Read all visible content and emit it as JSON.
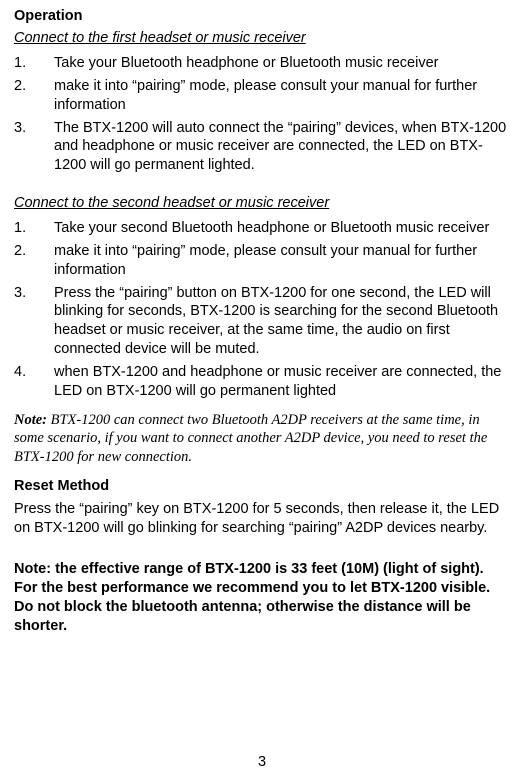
{
  "operation": {
    "heading": "Operation",
    "section1": {
      "heading": "Connect to the first headset or music receiver",
      "steps": [
        "Take your Bluetooth headphone or Bluetooth music receiver",
        "make it into “pairing” mode, please consult your manual for further information",
        "The BTX-1200 will auto connect the “pairing” devices, when BTX-1200 and headphone or music receiver are connected, the LED on BTX-1200 will go permanent lighted."
      ]
    },
    "section2": {
      "heading": "Connect to the second headset or music receiver",
      "steps": [
        "Take your second Bluetooth headphone or Bluetooth music receiver",
        "make it into “pairing” mode, please consult your manual for further information",
        "Press the “pairing” button on BTX-1200 for one second, the LED will blinking for seconds, BTX-1200 is searching for the second Bluetooth headset or music receiver, at the same time, the audio on first connected device will be muted.",
        "when BTX-1200 and headphone or music receiver are connected, the LED on BTX-1200 will go permanent lighted"
      ]
    },
    "note": {
      "label": "Note:",
      "body": " BTX-1200 can connect two Bluetooth A2DP receivers at the same time, in some scenario, if you want to connect another A2DP device, you need to reset the BTX-1200 for new connection."
    },
    "reset": {
      "heading": "Reset Method",
      "body": "Press the “pairing” key on BTX-1200 for 5 seconds, then release it, the LED on BTX-1200 will go blinking for searching “pairing” A2DP devices nearby."
    },
    "range_note": "Note: the effective range of BTX-1200 is 33 feet (10M) (light of sight). For the best performance we recommend you to let BTX-1200 visible. Do not block the bluetooth antenna; otherwise the distance will be shorter."
  },
  "page_number": "3",
  "colors": {
    "text": "#000000",
    "background": "#ffffff"
  }
}
